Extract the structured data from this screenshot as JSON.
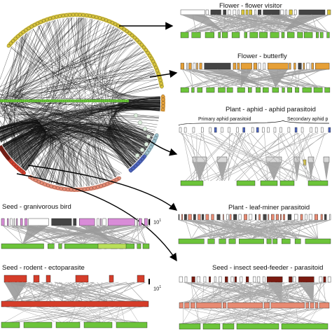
{
  "panels": [
    {
      "key": "flower_visitor",
      "title": "Flower - flower visitor"
    },
    {
      "key": "butterfly",
      "title": "Flower - butterfly"
    },
    {
      "key": "aphid",
      "title": "Plant - aphid - aphid parasitoid",
      "sublabels": [
        "Primary aphid parasitoid",
        "Secondary aphid p"
      ]
    },
    {
      "key": "leafminer",
      "title": "Plant - leaf-miner parasitoid"
    },
    {
      "key": "bird",
      "title": "Seed - granivorous bird"
    },
    {
      "key": "rodent",
      "title": "Seed - rodent - ectoparasite"
    },
    {
      "key": "seedfeeder",
      "title": "Seed - insect seed-feeder - parasitoid"
    }
  ],
  "scale": {
    "base": "10",
    "exponent": "1"
  },
  "colors": {
    "yellow": "#d8c43a",
    "orange": "#e6a037",
    "green": "#6cc43a",
    "lightgreen": "#b9df59",
    "pink": "#d98cd8",
    "salmon": "#e88a72",
    "red": "#d53d2a",
    "darkred": "#7a1a10",
    "grey": "#8f8f8f",
    "blue": "#4a63c0",
    "lightblue": "#9ec3cf"
  }
}
